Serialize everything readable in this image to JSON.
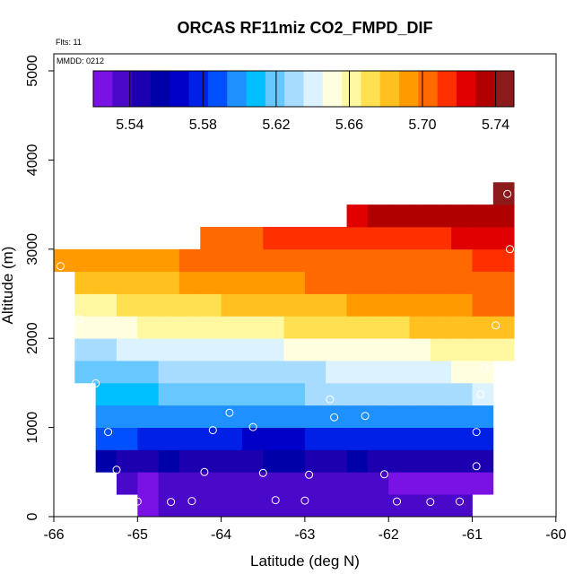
{
  "chart_data": {
    "type": "heatmap",
    "title": "ORCAS RF11miz CO2_FMPD_DIF",
    "xlabel": "Latitude (deg N)",
    "ylabel": "Altitude (m)",
    "xlim": [
      -66,
      -60
    ],
    "ylim": [
      0,
      5200
    ],
    "x_ticks": [
      "-66",
      "-65",
      "-64",
      "-63",
      "-62",
      "-61",
      "-60"
    ],
    "y_ticks": [
      "0",
      "1000",
      "2000",
      "3000",
      "4000",
      "5000"
    ],
    "notes": {
      "flights": "Flts: 11",
      "date": "MMDD: 0212"
    },
    "colorbar": {
      "range": [
        5.52,
        5.75
      ],
      "tick_labels": [
        "5.54",
        "5.58",
        "5.62",
        "5.66",
        "5.70",
        "5.74"
      ],
      "colors": [
        "#7a12e6",
        "#4a08c8",
        "#1c00b0",
        "#0000a8",
        "#0000c8",
        "#0020e8",
        "#0050ff",
        "#1e90ff",
        "#00bfff",
        "#66c8ff",
        "#a8dcff",
        "#ddf2ff",
        "#ffffe0",
        "#fff8a0",
        "#ffe050",
        "#ffc020",
        "#ff9a00",
        "#ff6a00",
        "#ff3000",
        "#e00000",
        "#b00000",
        "#8b1a1a"
      ]
    },
    "rows": [
      {
        "alt_bin": [
          0,
          250
        ],
        "lat_range": [
          -65.0,
          -61.0
        ],
        "values": [
          5.521,
          5.533,
          5.535,
          5.534,
          5.535,
          5.535,
          5.535,
          5.535,
          5.535,
          5.535,
          5.534,
          5.535,
          5.535,
          5.535,
          5.535,
          5.535
        ]
      },
      {
        "alt_bin": [
          250,
          500
        ],
        "lat_range": [
          -65.25,
          -60.75
        ],
        "values": [
          5.532,
          5.53,
          5.532,
          5.532,
          5.533,
          5.534,
          5.534,
          5.533,
          5.533,
          5.532,
          5.533,
          5.532,
          5.531,
          5.53,
          5.527,
          5.526,
          5.528,
          5.527
        ]
      },
      {
        "alt_bin": [
          500,
          750
        ],
        "lat_range": [
          -65.5,
          -60.75
        ],
        "values": [
          5.552,
          5.551,
          5.55,
          5.553,
          5.551,
          5.55,
          5.551,
          5.551,
          5.552,
          5.553,
          5.55,
          5.55,
          5.552,
          5.551,
          5.55,
          5.551,
          5.549,
          5.549,
          5.549
        ]
      },
      {
        "alt_bin": [
          750,
          1000
        ],
        "lat_range": [
          -65.5,
          -60.75
        ],
        "values": [
          5.585,
          5.583,
          5.579,
          5.58,
          5.579,
          5.578,
          5.576,
          5.565,
          5.567,
          5.571,
          5.577,
          5.58,
          5.581,
          5.579,
          5.581,
          5.577,
          5.58,
          5.579,
          5.578
        ]
      },
      {
        "alt_bin": [
          1000,
          1250
        ],
        "lat_range": [
          -65.5,
          -60.75
        ],
        "values": [
          5.601,
          5.598,
          5.597,
          5.6,
          5.599,
          5.597,
          5.6,
          5.599,
          5.598,
          5.603,
          5.6,
          5.602,
          5.6,
          5.6,
          5.602,
          5.6,
          5.601,
          5.602,
          5.6
        ]
      },
      {
        "alt_bin": [
          1250,
          1500
        ],
        "lat_range": [
          -65.5,
          -60.75
        ],
        "values": [
          5.61,
          5.612,
          5.613,
          5.617,
          5.616,
          5.618,
          5.621,
          5.621,
          5.62,
          5.621,
          5.625,
          5.625,
          5.627,
          5.628,
          5.628,
          5.629,
          5.632,
          5.633,
          5.635
        ]
      },
      {
        "alt_bin": [
          1500,
          1750
        ],
        "lat_range": [
          -65.75,
          -60.75
        ],
        "values": [
          5.621,
          5.623,
          5.624,
          5.624,
          5.626,
          5.628,
          5.629,
          5.629,
          5.629,
          5.63,
          5.633,
          5.634,
          5.635,
          5.637,
          5.639,
          5.641,
          5.643,
          5.645,
          5.648,
          5.649
        ]
      },
      {
        "alt_bin": [
          1750,
          2000
        ],
        "lat_range": [
          -65.75,
          -60.5
        ],
        "values": [
          5.632,
          5.634,
          5.635,
          5.635,
          5.638,
          5.638,
          5.64,
          5.642,
          5.643,
          5.644,
          5.646,
          5.647,
          5.648,
          5.65,
          5.652,
          5.654,
          5.655,
          5.657,
          5.659,
          5.661,
          5.663
        ]
      },
      {
        "alt_bin": [
          2000,
          2250
        ],
        "lat_range": [
          -65.75,
          -60.5
        ],
        "values": [
          5.651,
          5.652,
          5.655,
          5.656,
          5.658,
          5.66,
          5.661,
          5.662,
          5.665,
          5.665,
          5.667,
          5.669,
          5.67,
          5.672,
          5.675,
          5.676,
          5.678,
          5.679,
          5.681,
          5.682,
          5.684
        ]
      },
      {
        "alt_bin": [
          2250,
          2500
        ],
        "lat_range": [
          -65.75,
          -60.5
        ],
        "values": [
          5.664,
          5.665,
          5.667,
          5.67,
          5.671,
          5.673,
          5.676,
          5.677,
          5.679,
          5.681,
          5.682,
          5.685,
          5.686,
          5.688,
          5.69,
          5.692,
          5.694,
          5.695,
          5.697,
          5.698,
          5.699
        ]
      },
      {
        "alt_bin": [
          2500,
          2750
        ],
        "lat_range": [
          -65.75,
          -60.5
        ],
        "values": [
          5.677,
          5.679,
          5.682,
          5.685,
          5.686,
          5.688,
          5.69,
          5.691,
          5.693,
          5.694,
          5.696,
          5.698,
          5.699,
          5.7,
          5.702,
          5.703,
          5.704,
          5.705,
          5.706,
          5.707,
          5.708
        ]
      },
      {
        "alt_bin": [
          2750,
          3000
        ],
        "lat_range": [
          -66.0,
          -60.5
        ],
        "values": [
          5.69,
          5.692,
          5.693,
          5.694,
          5.696,
          5.697,
          5.698,
          5.699,
          5.7,
          5.701,
          5.702,
          5.703,
          5.704,
          5.704,
          5.705,
          5.706,
          5.707,
          5.707,
          5.708,
          5.708,
          5.709,
          5.709
        ]
      },
      {
        "alt_bin": [
          3000,
          3250
        ],
        "lat_range": [
          -64.25,
          -60.5
        ],
        "values": [
          5.705,
          5.706,
          5.708,
          5.709,
          5.71,
          5.711,
          5.712,
          5.714,
          5.715,
          5.716,
          5.717,
          5.718,
          5.719,
          5.72,
          5.72
        ]
      },
      {
        "alt_bin": [
          3250,
          3500
        ],
        "lat_range": [
          -62.5,
          -60.5
        ],
        "values": [
          5.728,
          5.73,
          5.731,
          5.733,
          5.734,
          5.736,
          5.737,
          5.738
        ]
      },
      {
        "alt_bin": [
          3500,
          3750
        ],
        "lat_range": [
          -60.75,
          -60.5
        ],
        "values": [
          5.746
        ]
      }
    ],
    "sample_points": [
      [
        -65.0,
        170
      ],
      [
        -64.6,
        165
      ],
      [
        -64.35,
        175
      ],
      [
        -63.35,
        185
      ],
      [
        -63.0,
        180
      ],
      [
        -61.9,
        170
      ],
      [
        -61.5,
        165
      ],
      [
        -61.15,
        170
      ],
      [
        -65.25,
        525
      ],
      [
        -64.2,
        500
      ],
      [
        -63.5,
        490
      ],
      [
        -62.95,
        470
      ],
      [
        -62.05,
        475
      ],
      [
        -60.95,
        565
      ],
      [
        -65.35,
        950
      ],
      [
        -64.1,
        970
      ],
      [
        -63.62,
        1005
      ],
      [
        -63.9,
        1165
      ],
      [
        -62.65,
        1115
      ],
      [
        -62.28,
        1130
      ],
      [
        -62.7,
        1315
      ],
      [
        -60.9,
        1370
      ],
      [
        -60.95,
        950
      ],
      [
        -65.5,
        1495
      ],
      [
        -60.85,
        1665
      ],
      [
        -65.7,
        2215
      ],
      [
        -60.72,
        2145
      ],
      [
        -65.92,
        2810
      ],
      [
        -60.55,
        3000
      ],
      [
        -60.58,
        3620
      ]
    ]
  }
}
